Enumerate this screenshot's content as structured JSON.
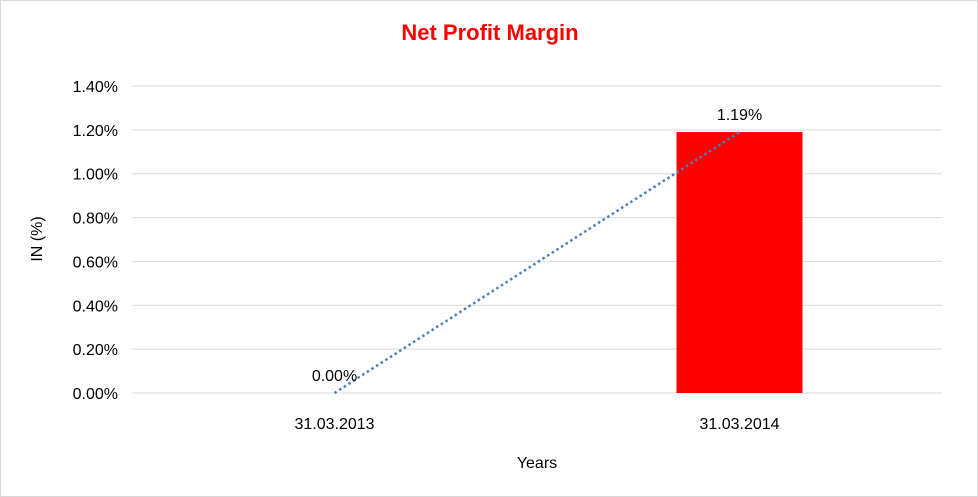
{
  "chart_data": {
    "type": "bar",
    "title": "Net Profit Margin",
    "xlabel": "Years",
    "ylabel": "IN (%)",
    "categories": [
      "31.03.2013",
      "31.03.2014"
    ],
    "values": [
      0.0,
      1.19
    ],
    "data_labels": [
      "0.00%",
      "1.19%"
    ],
    "yticks": [
      0.0,
      0.2,
      0.4,
      0.6,
      0.8,
      1.0,
      1.2,
      1.4
    ],
    "ytick_labels": [
      "0.00%",
      "0.20%",
      "0.40%",
      "0.60%",
      "0.80%",
      "1.00%",
      "1.20%",
      "1.40%"
    ],
    "ylim": [
      0,
      1.4
    ],
    "grid": true,
    "legend": "none",
    "trendline": "linear dotted",
    "colors": {
      "bar": "#ff0000",
      "title": "#ff0000",
      "trendline": "#4a7ebb",
      "grid": "#d9d9d9"
    }
  }
}
